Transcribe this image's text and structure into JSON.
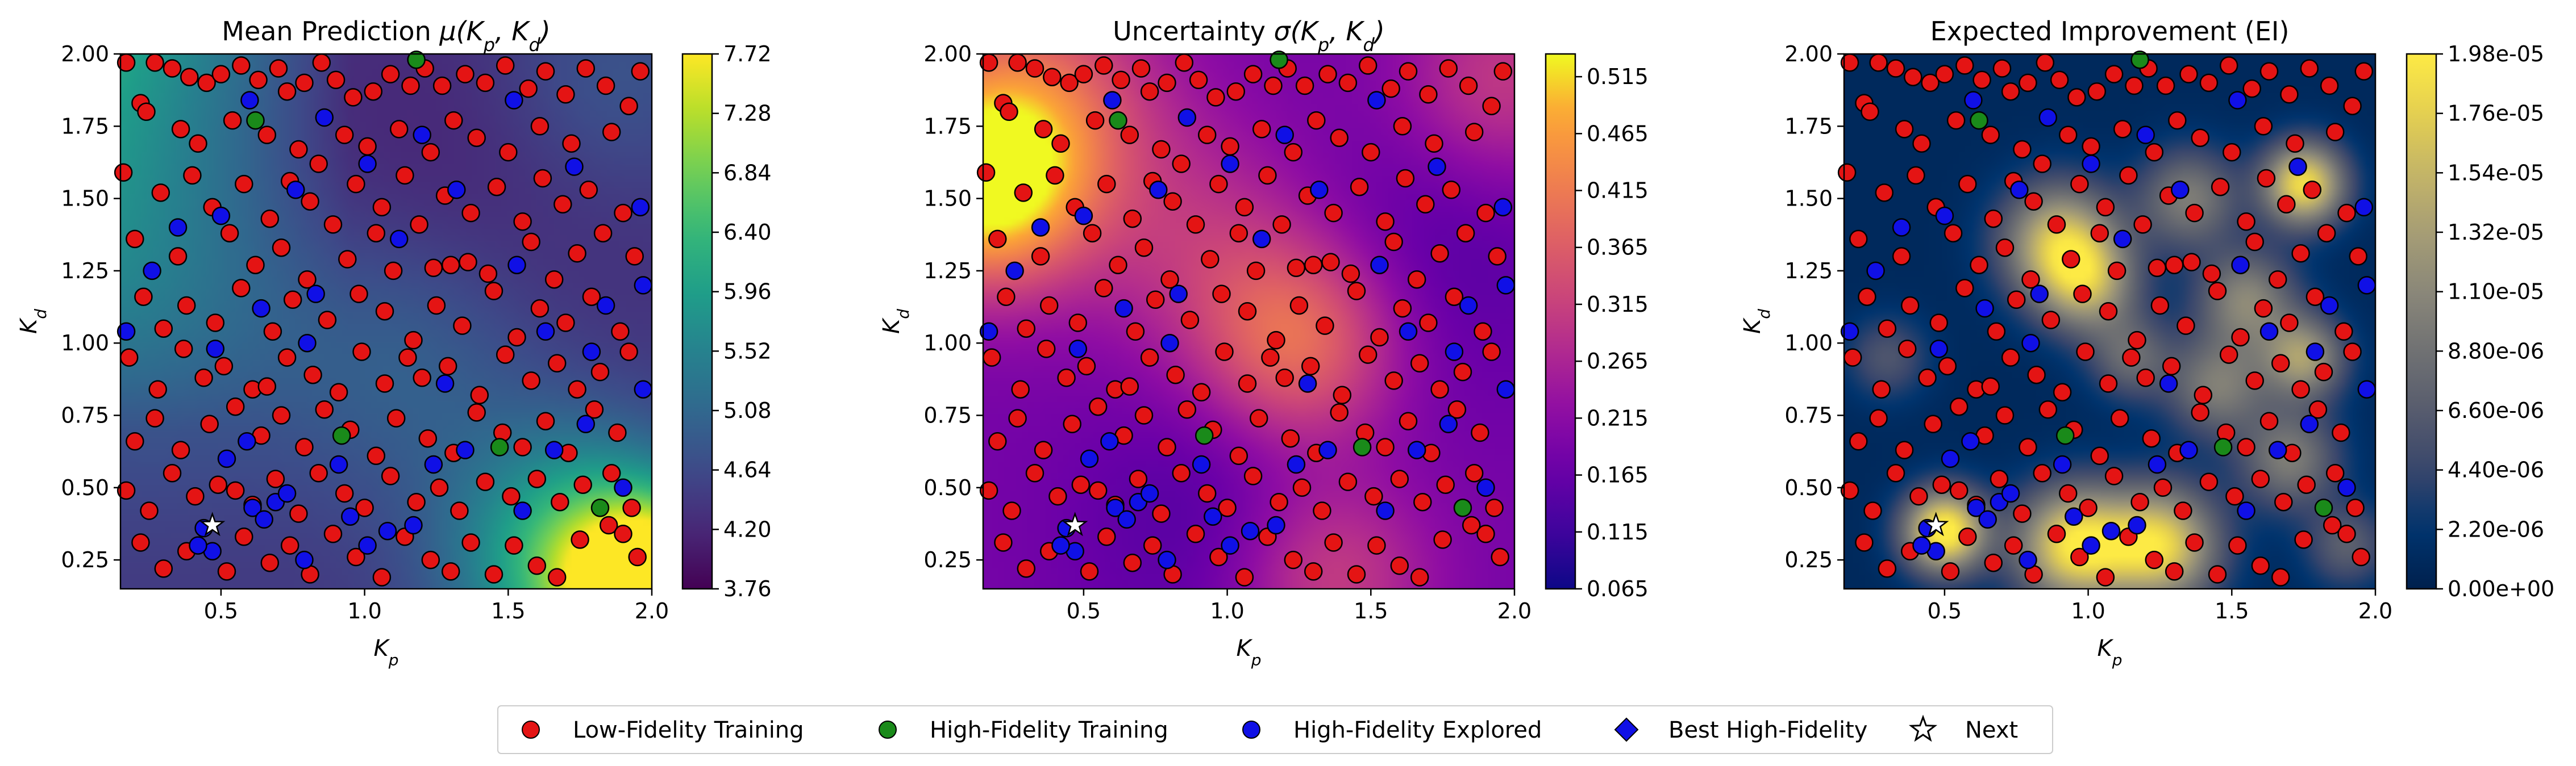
{
  "chart_data": [
    {
      "type": "heatmap",
      "title_main": "Mean Prediction ",
      "title_math": "μ(K",
      "title_sub1": "p",
      "title_mid": ", K",
      "title_sub2": "d",
      "title_end": ")",
      "xlabel": "K",
      "xlabel_sub": "p",
      "ylabel": "K",
      "ylabel_sub": "d",
      "xlim": [
        0.15,
        2.0
      ],
      "ylim": [
        0.15,
        2.0
      ],
      "xticks": [
        "0.5",
        "1.0",
        "1.5",
        "2.0"
      ],
      "yticks": [
        "0.25",
        "0.50",
        "0.75",
        "1.00",
        "1.25",
        "1.50",
        "1.75",
        "2.00"
      ],
      "colormap": "viridis",
      "colorbar_range": [
        3.76,
        7.72
      ],
      "colorbar_ticks": [
        "3.76",
        "4.20",
        "4.64",
        "5.08",
        "5.52",
        "5.96",
        "6.40",
        "6.84",
        "7.28",
        "7.72"
      ]
    },
    {
      "type": "heatmap",
      "title_main": "Uncertainty ",
      "title_math": "σ(K",
      "title_sub1": "p",
      "title_mid": ", K",
      "title_sub2": "d",
      "title_end": ")",
      "xlabel": "K",
      "xlabel_sub": "p",
      "ylabel": "K",
      "ylabel_sub": "d",
      "xlim": [
        0.15,
        2.0
      ],
      "ylim": [
        0.15,
        2.0
      ],
      "xticks": [
        "0.5",
        "1.0",
        "1.5",
        "2.0"
      ],
      "yticks": [
        "0.25",
        "0.50",
        "0.75",
        "1.00",
        "1.25",
        "1.50",
        "1.75",
        "2.00"
      ],
      "colormap": "plasma",
      "colorbar_range": [
        0.065,
        0.535
      ],
      "colorbar_ticks": [
        "0.065",
        "0.115",
        "0.165",
        "0.215",
        "0.265",
        "0.315",
        "0.365",
        "0.415",
        "0.465",
        "0.515"
      ]
    },
    {
      "type": "heatmap",
      "title_main": "Expected Improvement (EI)",
      "title_math": "",
      "title_sub1": "",
      "title_mid": "",
      "title_sub2": "",
      "title_end": "",
      "xlabel": "K",
      "xlabel_sub": "p",
      "ylabel": "K",
      "ylabel_sub": "d",
      "xlim": [
        0.15,
        2.0
      ],
      "ylim": [
        0.15,
        2.0
      ],
      "xticks": [
        "0.5",
        "1.0",
        "1.5",
        "2.0"
      ],
      "yticks": [
        "0.25",
        "0.50",
        "0.75",
        "1.00",
        "1.25",
        "1.50",
        "1.75",
        "2.00"
      ],
      "colormap": "cividis",
      "colorbar_range": [
        0,
        1.98e-05
      ],
      "colorbar_ticks": [
        "0.00e+00",
        "2.20e-06",
        "4.40e-06",
        "6.60e-06",
        "8.80e-06",
        "1.10e-05",
        "1.32e-05",
        "1.54e-05",
        "1.76e-05",
        "1.98e-05"
      ]
    }
  ],
  "points": {
    "low_fidelity": [
      [
        0.17,
        1.97
      ],
      [
        0.22,
        1.83
      ],
      [
        0.24,
        1.8
      ],
      [
        0.27,
        1.97
      ],
      [
        0.33,
        1.95
      ],
      [
        0.39,
        1.92
      ],
      [
        0.45,
        1.9
      ],
      [
        0.5,
        1.93
      ],
      [
        0.57,
        1.96
      ],
      [
        0.63,
        1.91
      ],
      [
        0.7,
        1.95
      ],
      [
        0.73,
        1.87
      ],
      [
        0.79,
        1.9
      ],
      [
        0.85,
        1.97
      ],
      [
        0.9,
        1.91
      ],
      [
        0.96,
        1.85
      ],
      [
        1.03,
        1.87
      ],
      [
        1.09,
        1.93
      ],
      [
        1.16,
        1.89
      ],
      [
        1.21,
        1.95
      ],
      [
        1.27,
        1.89
      ],
      [
        1.35,
        1.93
      ],
      [
        1.42,
        1.9
      ],
      [
        1.49,
        1.96
      ],
      [
        1.57,
        1.88
      ],
      [
        1.63,
        1.94
      ],
      [
        1.7,
        1.86
      ],
      [
        1.77,
        1.95
      ],
      [
        1.84,
        1.89
      ],
      [
        1.92,
        1.82
      ],
      [
        1.96,
        1.94
      ],
      [
        0.36,
        1.74
      ],
      [
        0.42,
        1.69
      ],
      [
        0.54,
        1.77
      ],
      [
        0.66,
        1.72
      ],
      [
        0.77,
        1.67
      ],
      [
        0.84,
        1.62
      ],
      [
        0.93,
        1.72
      ],
      [
        1.01,
        1.68
      ],
      [
        1.12,
        1.74
      ],
      [
        1.23,
        1.66
      ],
      [
        1.31,
        1.77
      ],
      [
        1.39,
        1.71
      ],
      [
        1.5,
        1.66
      ],
      [
        1.61,
        1.75
      ],
      [
        1.72,
        1.69
      ],
      [
        1.86,
        1.73
      ],
      [
        0.16,
        1.59
      ],
      [
        0.29,
        1.52
      ],
      [
        0.4,
        1.58
      ],
      [
        0.47,
        1.47
      ],
      [
        0.58,
        1.55
      ],
      [
        0.67,
        1.43
      ],
      [
        0.74,
        1.56
      ],
      [
        0.81,
        1.49
      ],
      [
        0.89,
        1.41
      ],
      [
        0.97,
        1.55
      ],
      [
        1.06,
        1.47
      ],
      [
        1.14,
        1.58
      ],
      [
        1.19,
        1.41
      ],
      [
        1.28,
        1.51
      ],
      [
        1.37,
        1.45
      ],
      [
        1.46,
        1.54
      ],
      [
        1.55,
        1.42
      ],
      [
        1.62,
        1.57
      ],
      [
        1.69,
        1.48
      ],
      [
        1.78,
        1.53
      ],
      [
        1.9,
        1.45
      ],
      [
        0.2,
        1.36
      ],
      [
        0.35,
        1.3
      ],
      [
        0.53,
        1.38
      ],
      [
        0.62,
        1.27
      ],
      [
        0.71,
        1.33
      ],
      [
        0.8,
        1.22
      ],
      [
        0.94,
        1.29
      ],
      [
        1.04,
        1.38
      ],
      [
        1.1,
        1.25
      ],
      [
        1.24,
        1.26
      ],
      [
        1.3,
        1.27
      ],
      [
        1.36,
        1.28
      ],
      [
        1.43,
        1.24
      ],
      [
        1.58,
        1.35
      ],
      [
        1.66,
        1.22
      ],
      [
        1.74,
        1.31
      ],
      [
        1.83,
        1.38
      ],
      [
        1.94,
        1.3
      ],
      [
        0.23,
        1.16
      ],
      [
        0.3,
        1.05
      ],
      [
        0.38,
        1.13
      ],
      [
        0.48,
        1.07
      ],
      [
        0.57,
        1.19
      ],
      [
        0.68,
        1.04
      ],
      [
        0.75,
        1.15
      ],
      [
        0.87,
        1.08
      ],
      [
        0.98,
        1.17
      ],
      [
        1.07,
        1.11
      ],
      [
        1.17,
        1.01
      ],
      [
        1.25,
        1.13
      ],
      [
        1.34,
        1.06
      ],
      [
        1.45,
        1.18
      ],
      [
        1.53,
        1.02
      ],
      [
        1.61,
        1.12
      ],
      [
        1.7,
        1.07
      ],
      [
        1.79,
        1.16
      ],
      [
        1.89,
        1.04
      ],
      [
        0.18,
        0.95
      ],
      [
        0.28,
        0.84
      ],
      [
        0.37,
        0.98
      ],
      [
        0.44,
        0.88
      ],
      [
        0.51,
        0.92
      ],
      [
        0.61,
        0.84
      ],
      [
        0.66,
        0.85
      ],
      [
        0.73,
        0.95
      ],
      [
        0.82,
        0.89
      ],
      [
        0.91,
        0.83
      ],
      [
        0.99,
        0.97
      ],
      [
        1.07,
        0.86
      ],
      [
        1.15,
        0.95
      ],
      [
        1.2,
        0.88
      ],
      [
        1.29,
        0.92
      ],
      [
        1.4,
        0.82
      ],
      [
        1.49,
        0.96
      ],
      [
        1.58,
        0.87
      ],
      [
        1.67,
        0.93
      ],
      [
        1.74,
        0.84
      ],
      [
        1.82,
        0.9
      ],
      [
        1.92,
        0.97
      ],
      [
        0.2,
        0.66
      ],
      [
        0.27,
        0.74
      ],
      [
        0.36,
        0.63
      ],
      [
        0.46,
        0.72
      ],
      [
        0.55,
        0.78
      ],
      [
        0.64,
        0.68
      ],
      [
        0.71,
        0.75
      ],
      [
        0.79,
        0.64
      ],
      [
        0.86,
        0.77
      ],
      [
        0.95,
        0.7
      ],
      [
        1.04,
        0.61
      ],
      [
        1.11,
        0.74
      ],
      [
        1.22,
        0.67
      ],
      [
        1.31,
        0.62
      ],
      [
        1.39,
        0.76
      ],
      [
        1.48,
        0.69
      ],
      [
        1.55,
        0.64
      ],
      [
        1.63,
        0.73
      ],
      [
        1.71,
        0.62
      ],
      [
        1.8,
        0.77
      ],
      [
        1.88,
        0.69
      ],
      [
        0.17,
        0.49
      ],
      [
        0.25,
        0.42
      ],
      [
        0.33,
        0.55
      ],
      [
        0.41,
        0.47
      ],
      [
        0.49,
        0.51
      ],
      [
        0.55,
        0.49
      ],
      [
        0.61,
        0.44
      ],
      [
        0.69,
        0.53
      ],
      [
        0.77,
        0.41
      ],
      [
        0.84,
        0.55
      ],
      [
        0.93,
        0.48
      ],
      [
        1.0,
        0.43
      ],
      [
        1.09,
        0.54
      ],
      [
        1.18,
        0.45
      ],
      [
        1.26,
        0.5
      ],
      [
        1.33,
        0.42
      ],
      [
        1.42,
        0.52
      ],
      [
        1.51,
        0.47
      ],
      [
        1.6,
        0.53
      ],
      [
        1.68,
        0.45
      ],
      [
        1.76,
        0.51
      ],
      [
        1.86,
        0.55
      ],
      [
        1.93,
        0.43
      ],
      [
        0.22,
        0.31
      ],
      [
        0.3,
        0.22
      ],
      [
        0.38,
        0.28
      ],
      [
        0.52,
        0.21
      ],
      [
        0.58,
        0.33
      ],
      [
        0.67,
        0.24
      ],
      [
        0.74,
        0.3
      ],
      [
        0.81,
        0.2
      ],
      [
        0.89,
        0.34
      ],
      [
        0.97,
        0.26
      ],
      [
        1.06,
        0.19
      ],
      [
        1.14,
        0.33
      ],
      [
        1.23,
        0.25
      ],
      [
        1.3,
        0.21
      ],
      [
        1.37,
        0.31
      ],
      [
        1.45,
        0.2
      ],
      [
        1.52,
        0.3
      ],
      [
        1.6,
        0.23
      ],
      [
        1.67,
        0.19
      ],
      [
        1.75,
        0.32
      ],
      [
        1.85,
        0.37
      ],
      [
        1.9,
        0.34
      ],
      [
        1.95,
        0.26
      ]
    ],
    "high_fidelity_training": [
      [
        1.18,
        1.98
      ],
      [
        0.62,
        1.77
      ],
      [
        0.92,
        0.68
      ],
      [
        1.47,
        0.64
      ],
      [
        1.82,
        0.43
      ]
    ],
    "high_fidelity_explored": [
      [
        0.17,
        1.04
      ],
      [
        0.35,
        1.4
      ],
      [
        0.5,
        1.44
      ],
      [
        0.6,
        1.84
      ],
      [
        0.76,
        1.53
      ],
      [
        0.86,
        1.78
      ],
      [
        1.01,
        1.62
      ],
      [
        1.2,
        1.72
      ],
      [
        1.32,
        1.53
      ],
      [
        1.52,
        1.84
      ],
      [
        1.73,
        1.61
      ],
      [
        1.96,
        1.47
      ],
      [
        0.26,
        1.25
      ],
      [
        0.64,
        1.12
      ],
      [
        0.83,
        1.17
      ],
      [
        1.12,
        1.36
      ],
      [
        1.53,
        1.27
      ],
      [
        1.84,
        1.13
      ],
      [
        1.97,
        1.2
      ],
      [
        0.48,
        0.98
      ],
      [
        0.59,
        0.66
      ],
      [
        0.8,
        1.0
      ],
      [
        1.28,
        0.86
      ],
      [
        1.63,
        1.04
      ],
      [
        1.79,
        0.97
      ],
      [
        1.97,
        0.84
      ],
      [
        0.52,
        0.6
      ],
      [
        0.61,
        0.43
      ],
      [
        0.69,
        0.45
      ],
      [
        0.73,
        0.48
      ],
      [
        0.65,
        0.39
      ],
      [
        0.44,
        0.36
      ],
      [
        0.47,
        0.28
      ],
      [
        0.42,
        0.3
      ],
      [
        0.79,
        0.25
      ],
      [
        0.95,
        0.4
      ],
      [
        1.01,
        0.3
      ],
      [
        1.08,
        0.35
      ],
      [
        1.17,
        0.37
      ],
      [
        1.35,
        0.63
      ],
      [
        1.55,
        0.42
      ],
      [
        1.66,
        0.63
      ],
      [
        1.77,
        0.72
      ],
      [
        1.9,
        0.5
      ],
      [
        0.91,
        0.58
      ],
      [
        1.24,
        0.58
      ]
    ],
    "next": [
      [
        0.47,
        0.37
      ]
    ]
  },
  "legend": {
    "low_fidelity": "Low-Fidelity Training",
    "high_fidelity_training": "High-Fidelity Training",
    "high_fidelity_explored": "High-Fidelity Explored",
    "best_high_fidelity": "Best High-Fidelity",
    "next": "Next"
  },
  "colors": {
    "low_fidelity": "#e41414",
    "high_fidelity_training": "#1a8a1a",
    "high_fidelity_explored": "#1010e6",
    "best_high_fidelity": "#1010e6",
    "next": "#ffffff",
    "marker_edge": "#000000"
  }
}
